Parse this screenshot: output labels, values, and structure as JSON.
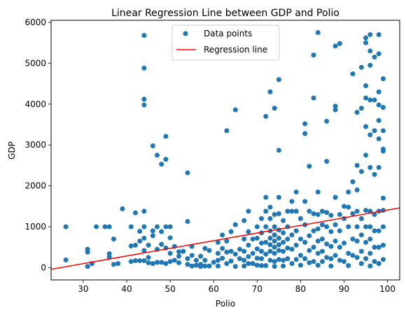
{
  "chart_data": {
    "type": "scatter",
    "title": "Linear Regression Line between GDP and Polio",
    "xlabel": "Polio",
    "ylabel": "GDP",
    "xlim": [
      22.6,
      102.8
    ],
    "ylim": [
      -300,
      6050
    ],
    "xticks": [
      30,
      40,
      50,
      60,
      70,
      80,
      90,
      100
    ],
    "yticks": [
      0,
      1000,
      2000,
      3000,
      4000,
      5000,
      6000
    ],
    "grid": false,
    "legend_position": "top-center",
    "colors": {
      "points": "#1f77b4",
      "line": "#ff0000"
    },
    "series": [
      {
        "name": "Data points",
        "kind": "scatter",
        "points": [
          [
            26,
            1000
          ],
          [
            26,
            190
          ],
          [
            31,
            380
          ],
          [
            31,
            450
          ],
          [
            31,
            30
          ],
          [
            32,
            100
          ],
          [
            33,
            1000
          ],
          [
            35,
            1000
          ],
          [
            36,
            1000
          ],
          [
            36,
            340
          ],
          [
            36,
            260
          ],
          [
            37,
            80
          ],
          [
            37,
            700
          ],
          [
            38,
            100
          ],
          [
            39,
            1440
          ],
          [
            41,
            1000
          ],
          [
            41,
            530
          ],
          [
            41,
            150
          ],
          [
            42,
            1340
          ],
          [
            42,
            550
          ],
          [
            42,
            170
          ],
          [
            43,
            890
          ],
          [
            43,
            650
          ],
          [
            43,
            170
          ],
          [
            44,
            5680
          ],
          [
            44,
            4880
          ],
          [
            44,
            4120
          ],
          [
            44,
            3980
          ],
          [
            44,
            1380
          ],
          [
            44,
            1000
          ],
          [
            44,
            720
          ],
          [
            44,
            420
          ],
          [
            44,
            170
          ],
          [
            45,
            550
          ],
          [
            45,
            250
          ],
          [
            45,
            120
          ],
          [
            46,
            2980
          ],
          [
            46,
            900
          ],
          [
            46,
            780
          ],
          [
            46,
            100
          ],
          [
            47,
            2750
          ],
          [
            47,
            1000
          ],
          [
            47,
            450
          ],
          [
            47,
            130
          ],
          [
            48,
            2530
          ],
          [
            48,
            880
          ],
          [
            48,
            570
          ],
          [
            48,
            130
          ],
          [
            49,
            3210
          ],
          [
            49,
            2650
          ],
          [
            49,
            1000
          ],
          [
            49,
            480
          ],
          [
            49,
            100
          ],
          [
            50,
            1000
          ],
          [
            50,
            730
          ],
          [
            50,
            350
          ],
          [
            50,
            150
          ],
          [
            51,
            520
          ],
          [
            51,
            180
          ],
          [
            52,
            390
          ],
          [
            52,
            280
          ],
          [
            52,
            120
          ],
          [
            53,
            400
          ],
          [
            54,
            2320
          ],
          [
            54,
            1130
          ],
          [
            54,
            220
          ],
          [
            54,
            80
          ],
          [
            55,
            520
          ],
          [
            55,
            300
          ],
          [
            55,
            40
          ],
          [
            56,
            180
          ],
          [
            56,
            60
          ],
          [
            57,
            280
          ],
          [
            57,
            80
          ],
          [
            57,
            30
          ],
          [
            58,
            470
          ],
          [
            58,
            180
          ],
          [
            58,
            40
          ],
          [
            59,
            420
          ],
          [
            59,
            40
          ],
          [
            60,
            130
          ],
          [
            61,
            620
          ],
          [
            61,
            350
          ],
          [
            61,
            180
          ],
          [
            61,
            40
          ],
          [
            62,
            800
          ],
          [
            62,
            470
          ],
          [
            62,
            230
          ],
          [
            63,
            3350
          ],
          [
            63,
            650
          ],
          [
            63,
            380
          ],
          [
            63,
            100
          ],
          [
            64,
            880
          ],
          [
            64,
            400
          ],
          [
            64,
            160
          ],
          [
            65,
            3860
          ],
          [
            65,
            1050
          ],
          [
            65,
            330
          ],
          [
            65,
            30
          ],
          [
            66,
            450
          ],
          [
            66,
            220
          ],
          [
            67,
            1150
          ],
          [
            67,
            700
          ],
          [
            67,
            400
          ],
          [
            67,
            180
          ],
          [
            67,
            40
          ],
          [
            68,
            1380
          ],
          [
            68,
            880
          ],
          [
            68,
            550
          ],
          [
            68,
            270
          ],
          [
            68,
            100
          ],
          [
            69,
            700
          ],
          [
            69,
            350
          ],
          [
            69,
            100
          ],
          [
            70,
            1000
          ],
          [
            70,
            720
          ],
          [
            70,
            460
          ],
          [
            70,
            230
          ],
          [
            70,
            60
          ],
          [
            71,
            1200
          ],
          [
            71,
            850
          ],
          [
            71,
            600
          ],
          [
            71,
            400
          ],
          [
            71,
            220
          ],
          [
            71,
            50
          ],
          [
            72,
            3700
          ],
          [
            72,
            1720
          ],
          [
            72,
            1380
          ],
          [
            72,
            1000
          ],
          [
            72,
            620
          ],
          [
            72,
            330
          ],
          [
            72,
            50
          ],
          [
            73,
            4300
          ],
          [
            73,
            1480
          ],
          [
            73,
            1200
          ],
          [
            73,
            900
          ],
          [
            73,
            720
          ],
          [
            73,
            560
          ],
          [
            73,
            400
          ],
          [
            73,
            180
          ],
          [
            74,
            3900
          ],
          [
            74,
            1300
          ],
          [
            74,
            1000
          ],
          [
            74,
            800
          ],
          [
            74,
            650
          ],
          [
            74,
            500
          ],
          [
            74,
            350
          ],
          [
            74,
            150
          ],
          [
            74,
            30
          ],
          [
            75,
            4600
          ],
          [
            75,
            2870
          ],
          [
            75,
            1720
          ],
          [
            75,
            1320
          ],
          [
            75,
            920
          ],
          [
            75,
            720
          ],
          [
            75,
            560
          ],
          [
            75,
            420
          ],
          [
            75,
            200
          ],
          [
            76,
            1150
          ],
          [
            76,
            850
          ],
          [
            76,
            620
          ],
          [
            76,
            400
          ],
          [
            76,
            180
          ],
          [
            76,
            40
          ],
          [
            77,
            1380
          ],
          [
            77,
            1000
          ],
          [
            77,
            700
          ],
          [
            77,
            480
          ],
          [
            77,
            220
          ],
          [
            78,
            1620
          ],
          [
            78,
            1380
          ],
          [
            78,
            800
          ],
          [
            78,
            450
          ],
          [
            78,
            100
          ],
          [
            79,
            1850
          ],
          [
            79,
            1380
          ],
          [
            79,
            900
          ],
          [
            79,
            550
          ],
          [
            79,
            200
          ],
          [
            80,
            1200
          ],
          [
            80,
            700
          ],
          [
            80,
            300
          ],
          [
            80,
            60
          ],
          [
            81,
            3520
          ],
          [
            81,
            3280
          ],
          [
            81,
            1620
          ],
          [
            81,
            1050
          ],
          [
            81,
            620
          ],
          [
            81,
            220
          ],
          [
            82,
            2480
          ],
          [
            82,
            1380
          ],
          [
            82,
            780
          ],
          [
            82,
            420
          ],
          [
            82,
            120
          ],
          [
            83,
            5200
          ],
          [
            83,
            4150
          ],
          [
            83,
            1320
          ],
          [
            83,
            900
          ],
          [
            83,
            500
          ],
          [
            83,
            150
          ],
          [
            84,
            5750
          ],
          [
            84,
            1850
          ],
          [
            84,
            1300
          ],
          [
            84,
            950
          ],
          [
            84,
            650
          ],
          [
            84,
            350
          ],
          [
            84,
            60
          ],
          [
            85,
            1380
          ],
          [
            85,
            1050
          ],
          [
            85,
            700
          ],
          [
            85,
            400
          ],
          [
            85,
            150
          ],
          [
            86,
            3580
          ],
          [
            86,
            2600
          ],
          [
            86,
            1350
          ],
          [
            86,
            1000
          ],
          [
            86,
            580
          ],
          [
            86,
            250
          ],
          [
            87,
            1280
          ],
          [
            87,
            880
          ],
          [
            87,
            520
          ],
          [
            87,
            220
          ],
          [
            87,
            40
          ],
          [
            88,
            5420
          ],
          [
            88,
            3950
          ],
          [
            88,
            3860
          ],
          [
            88,
            1720
          ],
          [
            88,
            1050
          ],
          [
            88,
            650
          ],
          [
            88,
            300
          ],
          [
            89,
            5480
          ],
          [
            89,
            1300
          ],
          [
            89,
            900
          ],
          [
            89,
            500
          ],
          [
            89,
            180
          ],
          [
            90,
            1500
          ],
          [
            90,
            1200
          ],
          [
            90,
            600
          ],
          [
            90,
            150
          ],
          [
            91,
            1850
          ],
          [
            91,
            1480
          ],
          [
            91,
            1000
          ],
          [
            91,
            350
          ],
          [
            91,
            50
          ],
          [
            92,
            4740
          ],
          [
            92,
            2100
          ],
          [
            92,
            1320
          ],
          [
            92,
            700
          ],
          [
            92,
            300
          ],
          [
            93,
            3800
          ],
          [
            93,
            2500
          ],
          [
            93,
            1900
          ],
          [
            93,
            1380
          ],
          [
            93,
            1000
          ],
          [
            93,
            650
          ],
          [
            93,
            250
          ],
          [
            94,
            4900
          ],
          [
            94,
            3900
          ],
          [
            94,
            2350
          ],
          [
            94,
            1200
          ],
          [
            94,
            800
          ],
          [
            94,
            400
          ],
          [
            94,
            100
          ],
          [
            95,
            5620
          ],
          [
            95,
            5500
          ],
          [
            95,
            4450
          ],
          [
            95,
            4150
          ],
          [
            95,
            3450
          ],
          [
            95,
            2750
          ],
          [
            95,
            1400
          ],
          [
            95,
            1000
          ],
          [
            95,
            620
          ],
          [
            95,
            220
          ],
          [
            96,
            5700
          ],
          [
            96,
            5300
          ],
          [
            96,
            4950
          ],
          [
            96,
            4100
          ],
          [
            96,
            3250
          ],
          [
            96,
            2450
          ],
          [
            96,
            1380
          ],
          [
            96,
            1000
          ],
          [
            96,
            700
          ],
          [
            96,
            350
          ],
          [
            96,
            40
          ],
          [
            97,
            5150
          ],
          [
            97,
            4100
          ],
          [
            97,
            3350
          ],
          [
            97,
            2280
          ],
          [
            97,
            1300
          ],
          [
            97,
            900
          ],
          [
            97,
            500
          ],
          [
            97,
            150
          ],
          [
            98,
            5700
          ],
          [
            98,
            5230
          ],
          [
            98,
            4300
          ],
          [
            98,
            3980
          ],
          [
            98,
            3600
          ],
          [
            98,
            3150
          ],
          [
            98,
            2450
          ],
          [
            98,
            1380
          ],
          [
            98,
            900
          ],
          [
            98,
            500
          ],
          [
            98,
            100
          ],
          [
            99,
            4620
          ],
          [
            99,
            3920
          ],
          [
            99,
            3350
          ],
          [
            99,
            2900
          ],
          [
            99,
            2850
          ],
          [
            99,
            1700
          ],
          [
            99,
            1400
          ],
          [
            99,
            1000
          ],
          [
            99,
            550
          ],
          [
            99,
            200
          ]
        ]
      },
      {
        "name": "Regression line",
        "kind": "line",
        "points": [
          [
            22.6,
            -40
          ],
          [
            102.8,
            1460
          ]
        ]
      }
    ]
  }
}
